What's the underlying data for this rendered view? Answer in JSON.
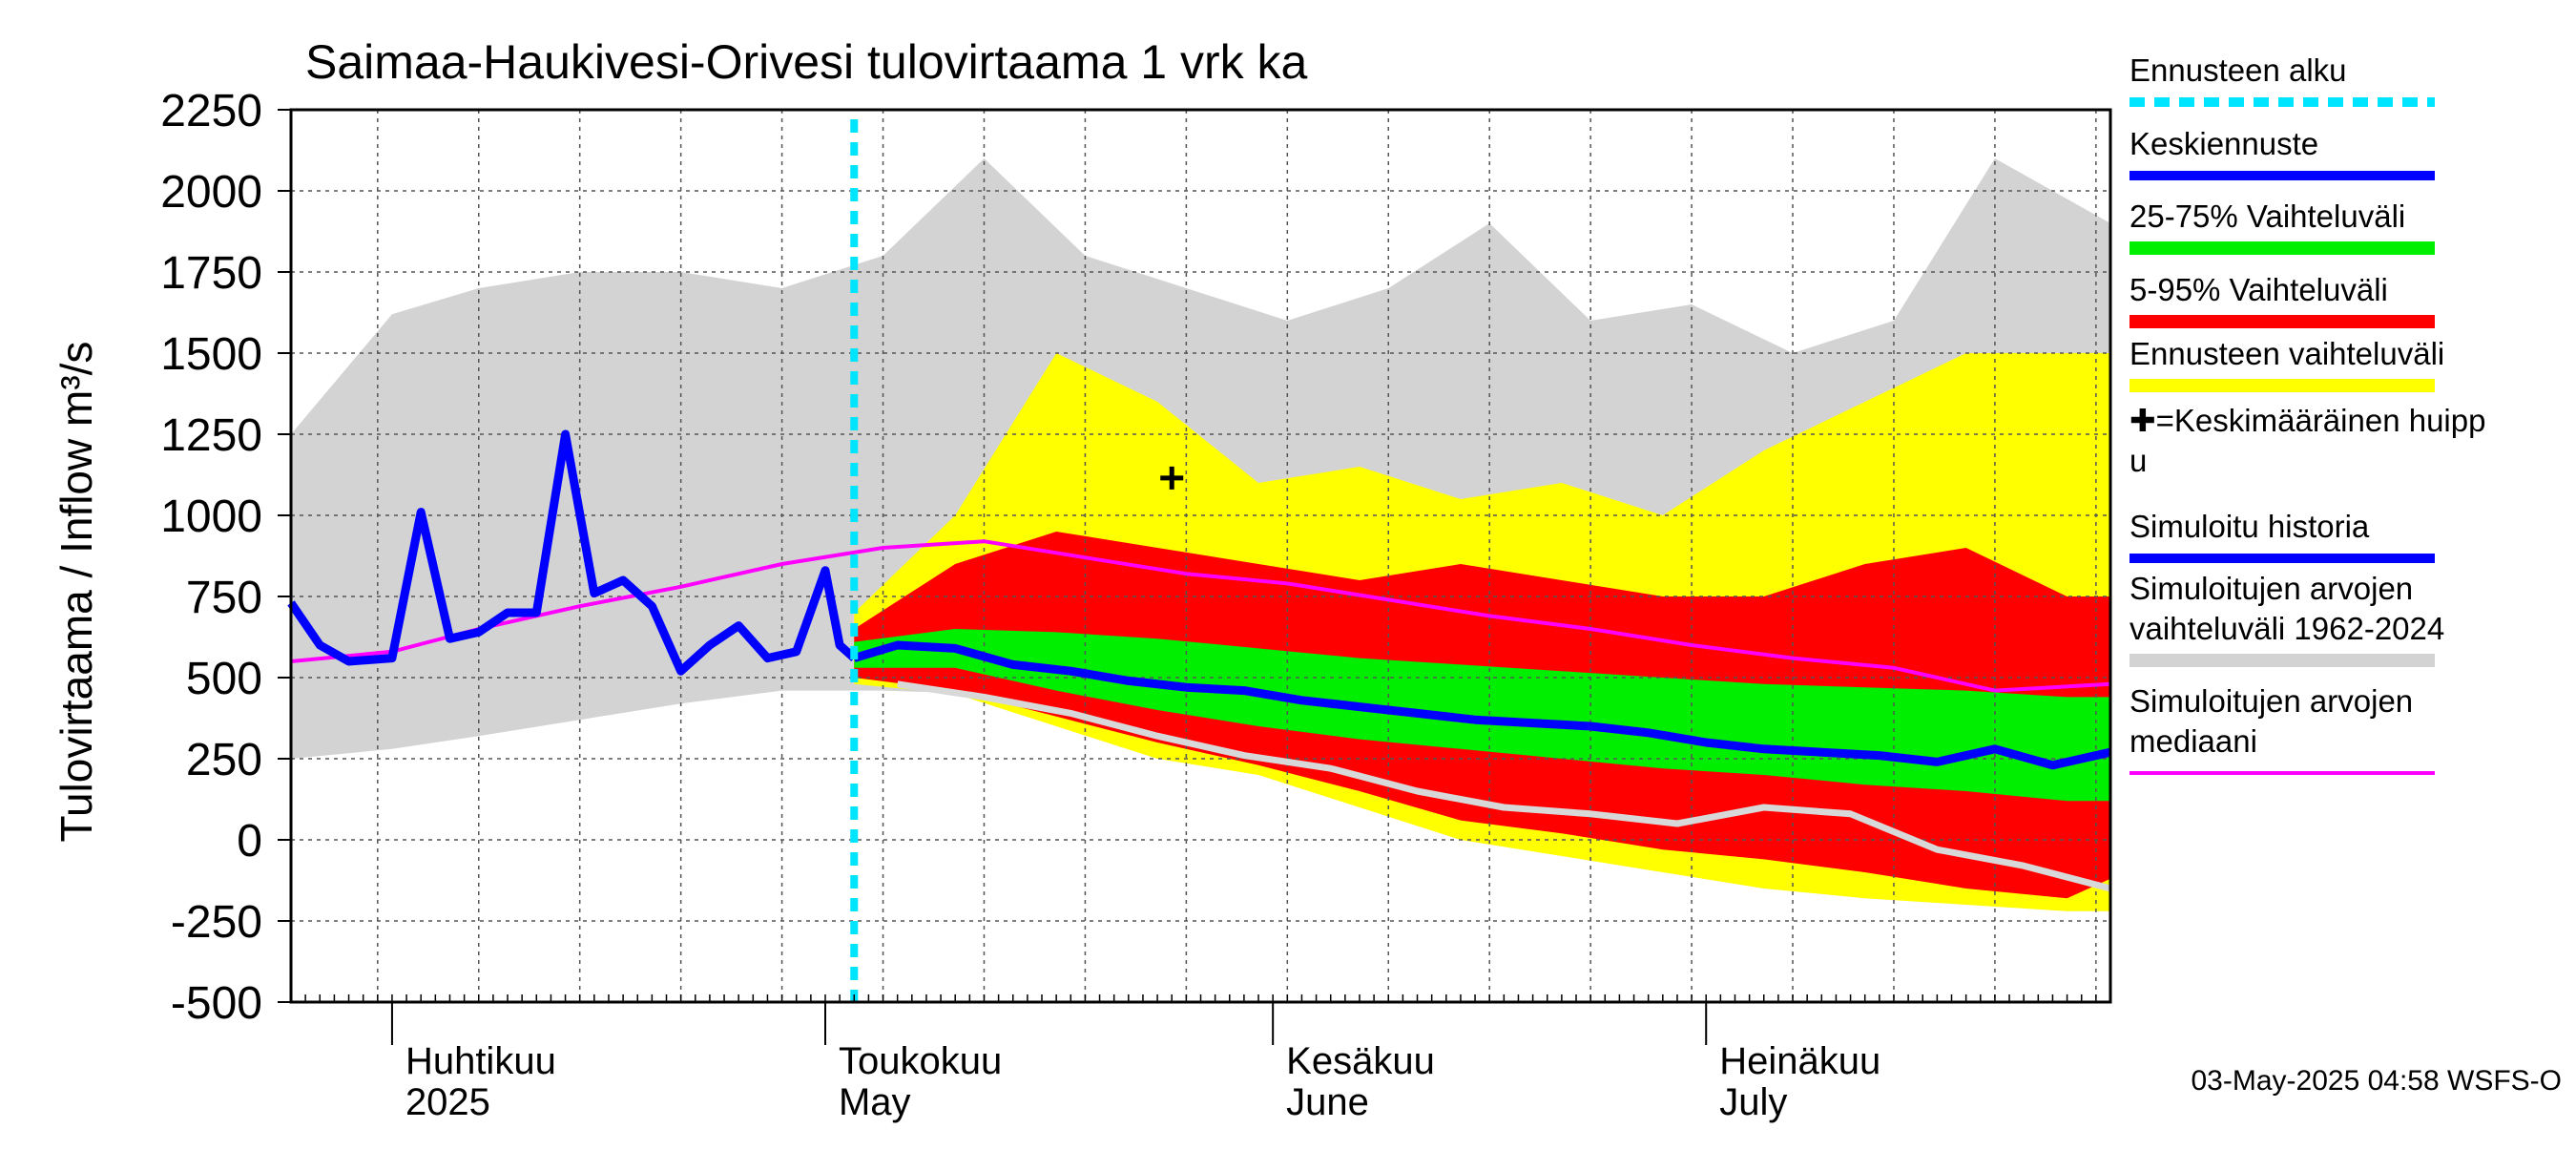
{
  "chart_data": {
    "type": "area",
    "title": "Saimaa-Haukivesi-Orivesi tulovirtaama 1 vrk ka",
    "ylabel": "Tulovirtaama / Inflow    m³/s",
    "xlabel": "",
    "ylim": [
      -500,
      2250
    ],
    "xlim": [
      "2025-03-25",
      "2025-07-29"
    ],
    "yticks": [
      "2250",
      "2000",
      "1750",
      "1500",
      "1250",
      "1000",
      "750",
      "500",
      "250",
      "0",
      "-250",
      "-500"
    ],
    "ytick_values": [
      2250,
      2000,
      1750,
      1500,
      1250,
      1000,
      750,
      500,
      250,
      0,
      -250,
      -500
    ],
    "month_labels": [
      {
        "fi": "Huhtikuu",
        "en": "2025",
        "date": "2025-04-01"
      },
      {
        "fi": "Toukokuu",
        "en": "May",
        "date": "2025-05-01"
      },
      {
        "fi": "Kesäkuu",
        "en": "June",
        "date": "2025-06-01"
      },
      {
        "fi": "Heinäkuu",
        "en": "July",
        "date": "2025-07-01"
      }
    ],
    "forecast_start": "2025-05-03",
    "grid": true,
    "legend_position": "right",
    "legend": [
      {
        "label": "Ennusteen alku",
        "style": "dashed",
        "color": "#00e5ff"
      },
      {
        "label": "Keskiennuste",
        "style": "line",
        "color": "#0000ff"
      },
      {
        "label": "25-75% Vaihteluväli",
        "style": "band",
        "color": "#00ee00"
      },
      {
        "label": "5-95% Vaihteluväli",
        "style": "band",
        "color": "#ff0000"
      },
      {
        "label": "Ennusteen vaihteluväli",
        "style": "band",
        "color": "#ffff00"
      },
      {
        "label": "✚=Keskimääräinen huippu",
        "style": "marker",
        "color": "#000000"
      },
      {
        "label": "Simuloitu historia",
        "style": "line",
        "color": "#0000ff"
      },
      {
        "label": "Simuloitujen arvojen vaihteluväli 1962-2024",
        "style": "band",
        "color": "#d3d3d3"
      },
      {
        "label": "Simuloitujen arvojen mediaani",
        "style": "line",
        "color": "#ff00ff"
      }
    ],
    "mean_peak": {
      "x": "2025-05-25",
      "y": 1115
    },
    "footer": "03-May-2025 04:58 WSFS-O",
    "series": [
      {
        "name": "Simuloitu historia",
        "x": [
          "2025-03-25",
          "2025-03-27",
          "2025-03-29",
          "2025-04-01",
          "2025-04-03",
          "2025-04-05",
          "2025-04-07",
          "2025-04-09",
          "2025-04-11",
          "2025-04-13",
          "2025-04-15",
          "2025-04-17",
          "2025-04-19",
          "2025-04-21",
          "2025-04-23",
          "2025-04-25",
          "2025-04-27",
          "2025-04-29",
          "2025-05-01",
          "2025-05-02",
          "2025-05-03"
        ],
        "values": [
          730,
          600,
          550,
          560,
          1010,
          620,
          640,
          700,
          700,
          1250,
          760,
          800,
          720,
          520,
          600,
          660,
          560,
          580,
          830,
          600,
          560
        ]
      },
      {
        "name": "Keskiennuste",
        "x": [
          "2025-05-03",
          "2025-05-06",
          "2025-05-10",
          "2025-05-14",
          "2025-05-18",
          "2025-05-22",
          "2025-05-26",
          "2025-05-30",
          "2025-06-03",
          "2025-06-07",
          "2025-06-11",
          "2025-06-15",
          "2025-06-19",
          "2025-06-23",
          "2025-06-27",
          "2025-07-01",
          "2025-07-05",
          "2025-07-09",
          "2025-07-13",
          "2025-07-17",
          "2025-07-21",
          "2025-07-25",
          "2025-07-29"
        ],
        "values": [
          560,
          600,
          590,
          540,
          520,
          490,
          470,
          460,
          430,
          410,
          390,
          370,
          360,
          350,
          330,
          300,
          280,
          270,
          260,
          240,
          280,
          230,
          270
        ]
      },
      {
        "name": "Simuloitujen arvojen mediaani",
        "x": [
          "2025-03-25",
          "2025-04-01",
          "2025-04-07",
          "2025-04-14",
          "2025-04-21",
          "2025-04-28",
          "2025-05-05",
          "2025-05-12",
          "2025-05-19",
          "2025-05-26",
          "2025-06-02",
          "2025-06-09",
          "2025-06-16",
          "2025-06-23",
          "2025-06-30",
          "2025-07-07",
          "2025-07-14",
          "2025-07-21",
          "2025-07-29"
        ],
        "values": [
          550,
          580,
          650,
          720,
          780,
          850,
          900,
          920,
          870,
          820,
          790,
          740,
          690,
          650,
          600,
          560,
          530,
          460,
          480
        ]
      },
      {
        "name": "Simuloitujen arvojen vaihteluväli 1962-2024",
        "x": [
          "2025-03-25",
          "2025-04-01",
          "2025-04-07",
          "2025-04-14",
          "2025-04-21",
          "2025-04-28",
          "2025-05-05",
          "2025-05-12",
          "2025-05-19",
          "2025-05-26",
          "2025-06-02",
          "2025-06-09",
          "2025-06-16",
          "2025-06-23",
          "2025-06-30",
          "2025-07-07",
          "2025-07-14",
          "2025-07-21",
          "2025-07-29"
        ],
        "high": [
          1250,
          1620,
          1700,
          1750,
          1750,
          1700,
          1800,
          2100,
          1800,
          1700,
          1600,
          1700,
          1900,
          1600,
          1650,
          1500,
          1600,
          2100,
          1900
        ],
        "low": [
          250,
          280,
          320,
          370,
          420,
          460,
          460,
          450,
          380,
          300,
          250,
          150,
          100,
          40,
          0,
          -30,
          -80,
          -140,
          -150
        ]
      },
      {
        "name": "Ennusteen vaihteluväli",
        "x": [
          "2025-05-03",
          "2025-05-10",
          "2025-05-17",
          "2025-05-24",
          "2025-05-31",
          "2025-06-07",
          "2025-06-14",
          "2025-06-21",
          "2025-06-28",
          "2025-07-05",
          "2025-07-12",
          "2025-07-19",
          "2025-07-26",
          "2025-07-29"
        ],
        "high": [
          700,
          1000,
          1500,
          1350,
          1100,
          1150,
          1050,
          1100,
          1000,
          1200,
          1350,
          1500,
          1500,
          1500
        ],
        "low": [
          480,
          450,
          350,
          250,
          200,
          100,
          0,
          -50,
          -100,
          -150,
          -180,
          -200,
          -220,
          -220
        ]
      },
      {
        "name": "5-95% Vaihteluväli",
        "x": [
          "2025-05-03",
          "2025-05-10",
          "2025-05-17",
          "2025-05-24",
          "2025-05-31",
          "2025-06-07",
          "2025-06-14",
          "2025-06-21",
          "2025-06-28",
          "2025-07-05",
          "2025-07-12",
          "2025-07-19",
          "2025-07-26",
          "2025-07-29"
        ],
        "high": [
          650,
          850,
          950,
          900,
          850,
          800,
          850,
          800,
          750,
          750,
          850,
          900,
          750,
          750
        ],
        "low": [
          500,
          460,
          380,
          300,
          230,
          150,
          60,
          20,
          -30,
          -60,
          -100,
          -150,
          -180,
          -120
        ]
      },
      {
        "name": "25-75% Vaihteluväli",
        "x": [
          "2025-05-03",
          "2025-05-10",
          "2025-05-17",
          "2025-05-24",
          "2025-05-31",
          "2025-06-07",
          "2025-06-14",
          "2025-06-21",
          "2025-06-28",
          "2025-07-05",
          "2025-07-12",
          "2025-07-19",
          "2025-07-26",
          "2025-07-29"
        ],
        "high": [
          610,
          650,
          640,
          620,
          590,
          560,
          540,
          520,
          500,
          480,
          470,
          460,
          440,
          440
        ],
        "low": [
          530,
          530,
          460,
          400,
          350,
          310,
          280,
          250,
          220,
          200,
          170,
          150,
          120,
          120
        ]
      },
      {
        "name": "5% ennuste",
        "x": [
          "2025-05-06",
          "2025-05-12",
          "2025-05-18",
          "2025-05-24",
          "2025-05-30",
          "2025-06-05",
          "2025-06-11",
          "2025-06-17",
          "2025-06-23",
          "2025-06-29",
          "2025-07-05",
          "2025-07-11",
          "2025-07-17",
          "2025-07-23",
          "2025-07-29"
        ],
        "values": [
          480,
          440,
          390,
          320,
          260,
          220,
          150,
          100,
          80,
          50,
          100,
          80,
          -30,
          -80,
          -150
        ]
      }
    ]
  }
}
